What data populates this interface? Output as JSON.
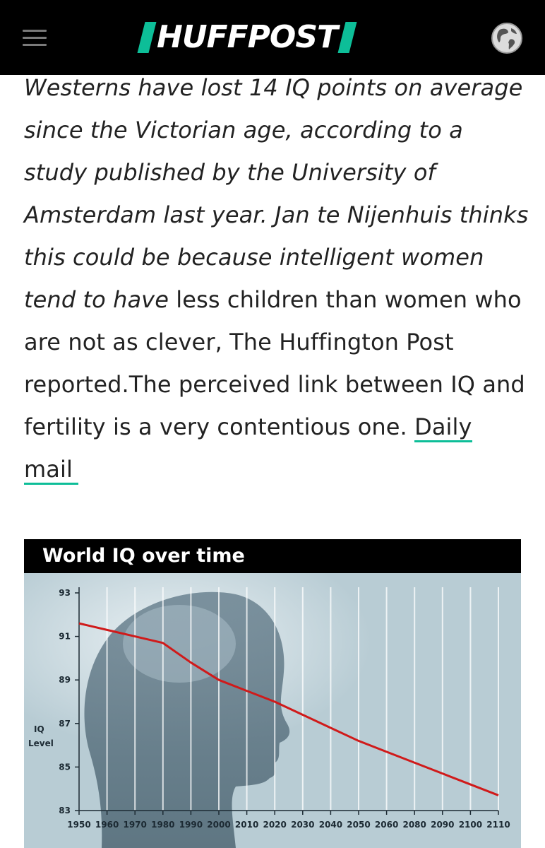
{
  "header": {
    "logo_text": "HUFFPOST",
    "menu_icon": "hamburger-menu-icon",
    "edition_icon": "globe-icon",
    "colors": {
      "background": "#000000",
      "accent": "#0dbe98",
      "logo_text": "#ffffff"
    }
  },
  "article": {
    "italic_part": "Westerns have lost 14 IQ points on average since the Victorian age, according to a study published by the University of Amsterdam last year. Jan te Nijenhuis thinks this could be because intelligent women tend to have",
    "upright_part": " less children than women who are not as clever, The Huffington Post reported.The perceived link between IQ and fertility is a very contentious one.",
    "link_text": "Daily mail"
  },
  "chart_data": {
    "type": "line",
    "title": "World IQ over time",
    "xlabel": "",
    "ylabel": "IQ Level",
    "categories": [
      "1950",
      "1960",
      "1970",
      "1980",
      "1990",
      "2000",
      "2010",
      "2020",
      "2030",
      "2040",
      "2050",
      "2060",
      "2080",
      "2090",
      "2100",
      "2110"
    ],
    "y_ticks": [
      83,
      85,
      87,
      89,
      91,
      93
    ],
    "ylim": [
      83,
      93
    ],
    "grid": true,
    "series": [
      {
        "values": [
          91.6,
          91.3,
          91.0,
          90.7,
          89.8,
          89.0,
          88.5,
          88.0,
          87.4,
          86.8,
          86.2,
          85.7,
          85.2,
          84.7,
          84.2,
          83.7
        ]
      }
    ],
    "colors": {
      "line": "#d01a1a",
      "background": "#b8ccd4",
      "silhouette": "#5d7582"
    }
  }
}
